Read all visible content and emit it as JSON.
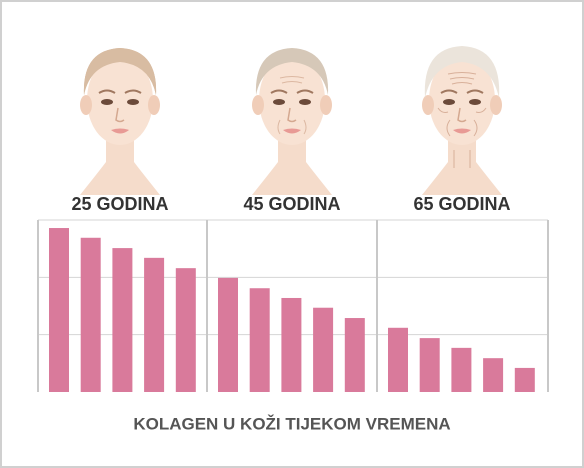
{
  "chart_data": {
    "type": "grouped-bar",
    "title": "KOLAGEN U KOŽI TIJEKOM VREMENA",
    "categories": [
      "25 GODINA",
      "45 GODINA",
      "65 GODINA"
    ],
    "values": [
      [
        2.86,
        2.69,
        2.51,
        2.34,
        2.16
      ],
      [
        1.99,
        1.81,
        1.64,
        1.47,
        1.29
      ],
      [
        1.12,
        0.94,
        0.77,
        0.59,
        0.42
      ]
    ],
    "color": "#d97a9b",
    "ylim": [
      0,
      3
    ],
    "yticks": [
      1,
      2,
      3
    ],
    "grid": true
  }
}
